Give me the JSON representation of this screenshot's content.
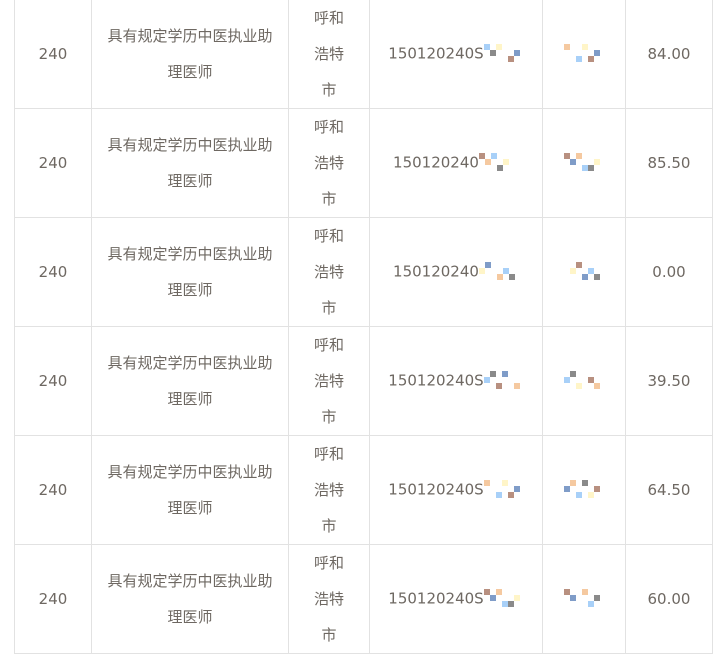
{
  "rows": [
    {
      "code": "240",
      "position": "具有规定学历中医执业助理医师",
      "city": "呼和浩特市",
      "id_prefix": "150120240S",
      "score": "84.00"
    },
    {
      "code": "240",
      "position": "具有规定学历中医执业助理医师",
      "city": "呼和浩特市",
      "id_prefix": "150120240",
      "score": "85.50"
    },
    {
      "code": "240",
      "position": "具有规定学历中医执业助理医师",
      "city": "呼和浩特市",
      "id_prefix": "150120240",
      "score": "0.00"
    },
    {
      "code": "240",
      "position": "具有规定学历中医执业助理医师",
      "city": "呼和浩特市",
      "id_prefix": "150120240S",
      "score": "39.50"
    },
    {
      "code": "240",
      "position": "具有规定学历中医执业助理医师",
      "city": "呼和浩特市",
      "id_prefix": "150120240S",
      "score": "64.50"
    },
    {
      "code": "240",
      "position": "具有规定学历中医执业助理医师",
      "city": "呼和浩特市",
      "id_prefix": "150120240S",
      "score": "60.00"
    }
  ],
  "colors": {
    "text": "#6e6862",
    "border": "#e2e2e2",
    "mosaic": [
      "#8a8a8a",
      "#a8d0f8",
      "#f5c9a0",
      "#7f9cc8",
      "#b89080",
      "#fff5c8"
    ]
  }
}
